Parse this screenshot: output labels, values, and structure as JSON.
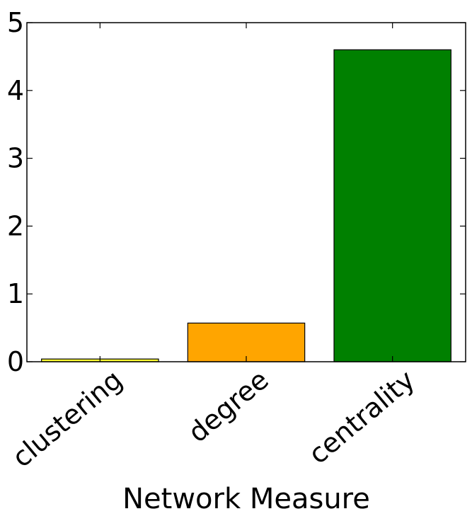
{
  "chart_data": {
    "type": "bar",
    "title": "",
    "xlabel": "Network Measure",
    "ylabel": "",
    "categories": [
      "clustering",
      "degree",
      "centrality"
    ],
    "values": [
      0.04,
      0.57,
      4.6
    ],
    "colors": [
      "#FFFF33",
      "#FFA500",
      "#008000"
    ],
    "ylim": [
      0,
      5
    ],
    "yticks": [
      0,
      1,
      2,
      3,
      4,
      5
    ],
    "grid": false,
    "legend": "none"
  }
}
